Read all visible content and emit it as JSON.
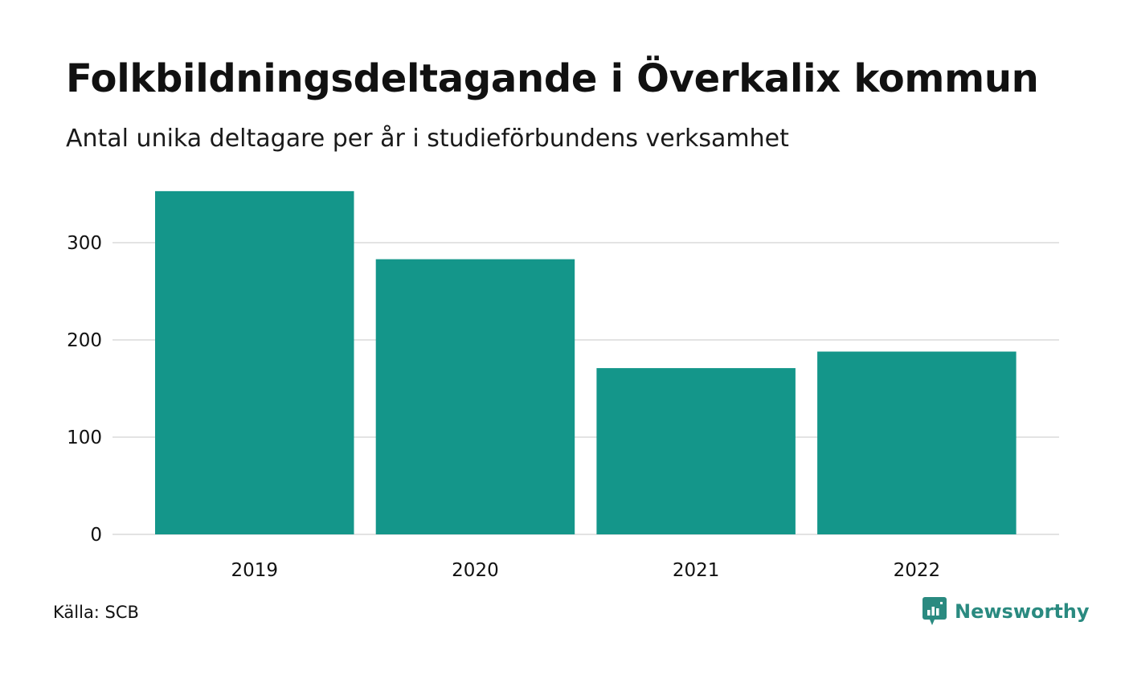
{
  "chart_data": {
    "type": "bar",
    "title": "Folkbildningsdeltagande i Överkalix kommun",
    "subtitle": "Antal unika deltagare per år i studieförbundens verksamhet",
    "categories": [
      "2019",
      "2020",
      "2021",
      "2022"
    ],
    "values": [
      353,
      283,
      171,
      188
    ],
    "y_ticks": [
      "0",
      "100",
      "200",
      "300"
    ],
    "ylim": [
      0,
      360
    ],
    "grid": true,
    "bar_color": "#14968a",
    "grid_color": "#e3e3e3"
  },
  "footer": {
    "source": "Källa: SCB",
    "brand": "Newsworthy",
    "brand_color": "#2a8a80"
  }
}
